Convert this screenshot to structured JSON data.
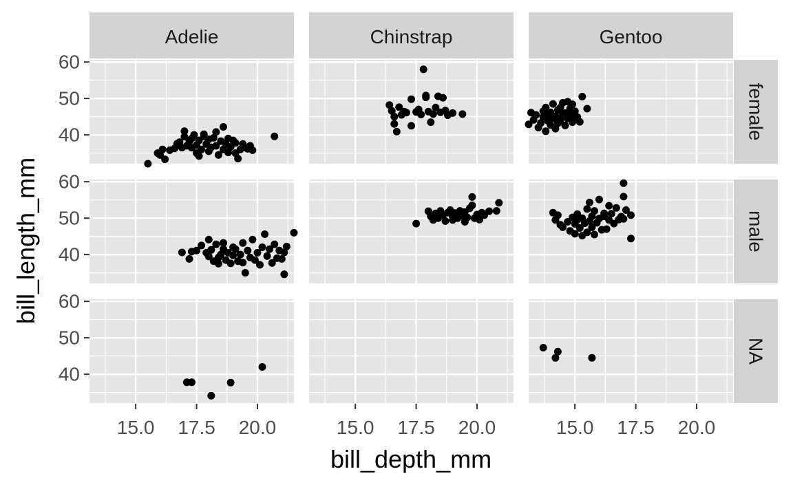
{
  "chart_data": {
    "type": "scatter",
    "layout": "facet_grid",
    "xlabel": "bill_depth_mm",
    "ylabel": "bill_length_mm",
    "xlim": [
      13.1,
      21.5
    ],
    "ylim": [
      32.1,
      60.6
    ],
    "x_ticks": [
      "15.0",
      "17.5",
      "20.0"
    ],
    "x_tick_values": [
      15.0,
      17.5,
      20.0
    ],
    "y_ticks": [
      "40",
      "50",
      "60"
    ],
    "y_tick_values": [
      40,
      50,
      60
    ],
    "grid": true,
    "point_color": "#000000",
    "panel_background": "#e5e5e5",
    "strip_background": "#d3d3d3",
    "columns": [
      "Adelie",
      "Chinstrap",
      "Gentoo"
    ],
    "rows": [
      "female",
      "male",
      "NA"
    ],
    "panels": [
      {
        "col": "Adelie",
        "row": "female",
        "points": [
          [
            15.5,
            32.1
          ],
          [
            15.9,
            35.0
          ],
          [
            16.0,
            34.5
          ],
          [
            16.1,
            36.0
          ],
          [
            16.2,
            33.3
          ],
          [
            16.4,
            35.8
          ],
          [
            16.6,
            36.3
          ],
          [
            16.7,
            37.6
          ],
          [
            16.8,
            38.0
          ],
          [
            16.9,
            36.5
          ],
          [
            17.0,
            39.5
          ],
          [
            17.0,
            41.0
          ],
          [
            17.1,
            37.0
          ],
          [
            17.2,
            38.2
          ],
          [
            17.3,
            39.0
          ],
          [
            17.3,
            36.5
          ],
          [
            17.4,
            40.0
          ],
          [
            17.5,
            35.0
          ],
          [
            17.5,
            37.2
          ],
          [
            17.6,
            38.5
          ],
          [
            17.6,
            34.2
          ],
          [
            17.7,
            36.0
          ],
          [
            17.8,
            39.6
          ],
          [
            17.8,
            40.2
          ],
          [
            17.9,
            37.5
          ],
          [
            18.0,
            35.5
          ],
          [
            18.0,
            38.8
          ],
          [
            18.1,
            36.6
          ],
          [
            18.2,
            39.2
          ],
          [
            18.3,
            40.8
          ],
          [
            18.3,
            37.0
          ],
          [
            18.4,
            34.5
          ],
          [
            18.5,
            38.3
          ],
          [
            18.6,
            42.2
          ],
          [
            18.6,
            36.0
          ],
          [
            18.7,
            37.5
          ],
          [
            18.8,
            39.0
          ],
          [
            18.8,
            35.2
          ],
          [
            18.9,
            36.7
          ],
          [
            19.0,
            38.5
          ],
          [
            19.1,
            35.0
          ],
          [
            19.1,
            37.8
          ],
          [
            19.2,
            33.5
          ],
          [
            19.3,
            36.0
          ],
          [
            19.4,
            37.5
          ],
          [
            19.5,
            36.5
          ],
          [
            19.6,
            36.2
          ],
          [
            19.7,
            37.0
          ],
          [
            19.8,
            35.8
          ],
          [
            20.7,
            39.6
          ]
        ]
      },
      {
        "col": "Adelie",
        "row": "male",
        "points": [
          [
            16.9,
            40.6
          ],
          [
            17.2,
            38.8
          ],
          [
            17.3,
            40.8
          ],
          [
            17.5,
            41.1
          ],
          [
            17.7,
            42.5
          ],
          [
            17.9,
            40.5
          ],
          [
            18.0,
            44.1
          ],
          [
            18.0,
            39.5
          ],
          [
            18.1,
            41.3
          ],
          [
            18.2,
            38.2
          ],
          [
            18.3,
            42.8
          ],
          [
            18.4,
            39.2
          ],
          [
            18.4,
            37.5
          ],
          [
            18.5,
            40.0
          ],
          [
            18.6,
            43.2
          ],
          [
            18.6,
            41.5
          ],
          [
            18.7,
            38.5
          ],
          [
            18.8,
            40.5
          ],
          [
            18.9,
            37.6
          ],
          [
            19.0,
            42.0
          ],
          [
            19.0,
            39.8
          ],
          [
            19.1,
            41.5
          ],
          [
            19.2,
            38.2
          ],
          [
            19.3,
            40.0
          ],
          [
            19.4,
            43.2
          ],
          [
            19.4,
            37.8
          ],
          [
            19.5,
            35.0
          ],
          [
            19.6,
            41.1
          ],
          [
            19.7,
            39.2
          ],
          [
            19.8,
            44.1
          ],
          [
            19.9,
            38.5
          ],
          [
            20.0,
            40.5
          ],
          [
            20.1,
            37.2
          ],
          [
            20.2,
            42.0
          ],
          [
            20.3,
            45.6
          ],
          [
            20.4,
            39.6
          ],
          [
            20.5,
            41.5
          ],
          [
            20.6,
            37.7
          ],
          [
            20.7,
            42.8
          ],
          [
            20.8,
            39.0
          ],
          [
            20.9,
            41.1
          ],
          [
            21.0,
            38.8
          ],
          [
            21.1,
            40.6
          ],
          [
            21.1,
            34.6
          ],
          [
            21.2,
            42.2
          ],
          [
            21.5,
            46.0
          ]
        ]
      },
      {
        "col": "Adelie",
        "row": "NA",
        "points": [
          [
            17.1,
            37.8
          ],
          [
            17.3,
            37.8
          ],
          [
            18.1,
            34.1
          ],
          [
            18.9,
            37.7
          ],
          [
            20.2,
            42.0
          ]
        ]
      },
      {
        "col": "Chinstrap",
        "row": "female",
        "points": [
          [
            16.4,
            48.2
          ],
          [
            16.5,
            46.6
          ],
          [
            16.6,
            45.0
          ],
          [
            16.6,
            43.0
          ],
          [
            16.7,
            40.9
          ],
          [
            16.8,
            47.6
          ],
          [
            16.9,
            45.5
          ],
          [
            17.0,
            46.4
          ],
          [
            17.1,
            46.1
          ],
          [
            17.3,
            49.8
          ],
          [
            17.3,
            42.5
          ],
          [
            17.5,
            46.3
          ],
          [
            17.6,
            47.0
          ],
          [
            17.7,
            45.6
          ],
          [
            17.8,
            58.0
          ],
          [
            17.9,
            50.8
          ],
          [
            17.9,
            50.3
          ],
          [
            18.0,
            46.4
          ],
          [
            18.1,
            43.5
          ],
          [
            18.2,
            45.7
          ],
          [
            18.3,
            47.5
          ],
          [
            18.4,
            50.6
          ],
          [
            18.5,
            46.2
          ],
          [
            18.6,
            50.2
          ],
          [
            18.7,
            46.7
          ],
          [
            18.8,
            45.4
          ],
          [
            19.0,
            46.0
          ],
          [
            19.4,
            45.7
          ]
        ]
      },
      {
        "col": "Chinstrap",
        "row": "male",
        "points": [
          [
            17.5,
            48.5
          ],
          [
            18.0,
            51.9
          ],
          [
            18.1,
            50.5
          ],
          [
            18.2,
            49.5
          ],
          [
            18.3,
            51.3
          ],
          [
            18.4,
            50.0
          ],
          [
            18.5,
            52.0
          ],
          [
            18.6,
            50.8
          ],
          [
            18.7,
            49.2
          ],
          [
            18.8,
            51.5
          ],
          [
            18.9,
            52.2
          ],
          [
            19.0,
            50.5
          ],
          [
            19.0,
            49.5
          ],
          [
            19.1,
            51.4
          ],
          [
            19.2,
            50.0
          ],
          [
            19.3,
            52.0
          ],
          [
            19.4,
            50.6
          ],
          [
            19.5,
            49.0
          ],
          [
            19.5,
            51.7
          ],
          [
            19.6,
            50.2
          ],
          [
            19.7,
            52.7
          ],
          [
            19.8,
            55.8
          ],
          [
            19.8,
            53.5
          ],
          [
            19.9,
            50.0
          ],
          [
            20.0,
            51.0
          ],
          [
            20.1,
            49.6
          ],
          [
            20.2,
            51.5
          ],
          [
            20.3,
            50.8
          ],
          [
            20.5,
            51.9
          ],
          [
            20.8,
            52.0
          ],
          [
            20.9,
            54.2
          ]
        ]
      },
      {
        "col": "Gentoo",
        "row": "female",
        "points": [
          [
            13.1,
            42.9
          ],
          [
            13.2,
            46.1
          ],
          [
            13.3,
            44.1
          ],
          [
            13.4,
            45.5
          ],
          [
            13.5,
            42.0
          ],
          [
            13.6,
            43.3
          ],
          [
            13.7,
            44.9
          ],
          [
            13.7,
            46.5
          ],
          [
            13.8,
            41.0
          ],
          [
            13.8,
            47.5
          ],
          [
            13.9,
            45.2
          ],
          [
            13.9,
            43.8
          ],
          [
            14.0,
            46.2
          ],
          [
            14.0,
            42.7
          ],
          [
            14.1,
            44.5
          ],
          [
            14.1,
            48.5
          ],
          [
            14.2,
            45.1
          ],
          [
            14.2,
            41.7
          ],
          [
            14.3,
            46.8
          ],
          [
            14.3,
            43.2
          ],
          [
            14.4,
            44.0
          ],
          [
            14.4,
            47.5
          ],
          [
            14.5,
            45.5
          ],
          [
            14.5,
            48.8
          ],
          [
            14.6,
            42.6
          ],
          [
            14.6,
            46.0
          ],
          [
            14.7,
            44.5
          ],
          [
            14.7,
            49.1
          ],
          [
            14.8,
            45.3
          ],
          [
            14.8,
            47.2
          ],
          [
            14.9,
            43.5
          ],
          [
            14.9,
            48.4
          ],
          [
            15.0,
            45.0
          ],
          [
            15.0,
            46.5
          ],
          [
            15.1,
            44.9
          ],
          [
            15.2,
            43.6
          ],
          [
            15.3,
            50.5
          ],
          [
            15.5,
            47.2
          ]
        ]
      },
      {
        "col": "Gentoo",
        "row": "male",
        "points": [
          [
            14.1,
            51.5
          ],
          [
            14.2,
            49.5
          ],
          [
            14.3,
            50.8
          ],
          [
            14.4,
            48.2
          ],
          [
            14.5,
            47.5
          ],
          [
            14.7,
            49.0
          ],
          [
            14.8,
            46.5
          ],
          [
            14.9,
            50.2
          ],
          [
            15.0,
            48.4
          ],
          [
            15.0,
            45.7
          ],
          [
            15.1,
            49.5
          ],
          [
            15.1,
            51.1
          ],
          [
            15.2,
            47.3
          ],
          [
            15.3,
            50.0
          ],
          [
            15.3,
            45.2
          ],
          [
            15.4,
            48.6
          ],
          [
            15.5,
            46.1
          ],
          [
            15.5,
            52.5
          ],
          [
            15.6,
            49.2
          ],
          [
            15.6,
            54.3
          ],
          [
            15.7,
            50.5
          ],
          [
            15.7,
            47.5
          ],
          [
            15.8,
            45.5
          ],
          [
            15.8,
            52.0
          ],
          [
            15.9,
            48.7
          ],
          [
            16.0,
            55.1
          ],
          [
            16.0,
            49.9
          ],
          [
            16.1,
            46.8
          ],
          [
            16.2,
            51.3
          ],
          [
            16.2,
            50.5
          ],
          [
            16.3,
            47.0
          ],
          [
            16.4,
            53.4
          ],
          [
            16.4,
            49.5
          ],
          [
            16.5,
            51.2
          ],
          [
            16.6,
            48.5
          ],
          [
            16.7,
            52.8
          ],
          [
            16.8,
            49.6
          ],
          [
            16.9,
            50.4
          ],
          [
            17.0,
            59.6
          ],
          [
            17.0,
            55.9
          ],
          [
            17.0,
            49.8
          ],
          [
            17.1,
            52.2
          ],
          [
            17.3,
            50.8
          ],
          [
            17.3,
            44.4
          ]
        ]
      },
      {
        "col": "Gentoo",
        "row": "NA",
        "points": [
          [
            13.7,
            47.3
          ],
          [
            14.2,
            44.5
          ],
          [
            14.3,
            46.2
          ],
          [
            15.7,
            44.5
          ]
        ]
      }
    ]
  }
}
